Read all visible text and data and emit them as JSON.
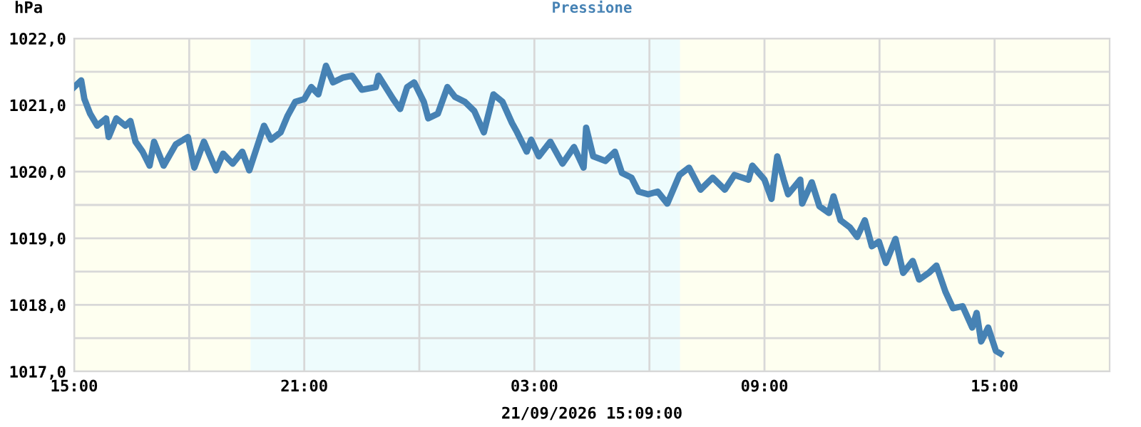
{
  "chart_data": {
    "type": "line",
    "title": "Pressione",
    "ylabel": "hPa",
    "xlabel": "21/09/2026 15:09:00",
    "x": [
      "2026-09-20T15:00",
      "2026-09-20T15:11",
      "2026-09-20T15:16",
      "2026-09-20T15:25",
      "2026-09-20T15:36",
      "2026-09-20T15:50",
      "2026-09-20T15:54",
      "2026-09-20T16:06",
      "2026-09-20T16:20",
      "2026-09-20T16:28",
      "2026-09-20T16:36",
      "2026-09-20T16:47",
      "2026-09-20T16:58",
      "2026-09-20T17:05",
      "2026-09-20T17:20",
      "2026-09-20T17:39",
      "2026-09-20T17:58",
      "2026-09-20T18:08",
      "2026-09-20T18:23",
      "2026-09-20T18:42",
      "2026-09-20T18:53",
      "2026-09-20T19:08",
      "2026-09-20T19:23",
      "2026-09-20T19:34",
      "2026-09-20T19:46",
      "2026-09-20T19:57",
      "2026-09-20T20:08",
      "2026-09-20T20:23",
      "2026-09-20T20:34",
      "2026-09-20T20:46",
      "2026-09-20T21:00",
      "2026-09-20T21:11",
      "2026-09-20T21:22",
      "2026-09-20T21:34",
      "2026-09-20T21:45",
      "2026-09-20T22:00",
      "2026-09-20T22:15",
      "2026-09-20T22:30",
      "2026-09-20T22:52",
      "2026-09-20T22:56",
      "2026-09-20T23:19",
      "2026-09-20T23:30",
      "2026-09-20T23:41",
      "2026-09-20T23:52",
      "2026-09-21T00:07",
      "2026-09-21T00:14",
      "2026-09-21T00:29",
      "2026-09-21T00:44",
      "2026-09-21T00:56",
      "2026-09-21T01:11",
      "2026-09-21T01:26",
      "2026-09-21T01:41",
      "2026-09-21T01:56",
      "2026-09-21T02:10",
      "2026-09-21T02:25",
      "2026-09-21T02:33",
      "2026-09-21T02:48",
      "2026-09-21T02:55",
      "2026-09-21T03:07",
      "2026-09-21T03:25",
      "2026-09-21T03:44",
      "2026-09-21T04:02",
      "2026-09-21T04:17",
      "2026-09-21T04:21",
      "2026-09-21T04:32",
      "2026-09-21T04:51",
      "2026-09-21T05:06",
      "2026-09-21T05:17",
      "2026-09-21T05:32",
      "2026-09-21T05:43",
      "2026-09-21T05:58",
      "2026-09-21T06:13",
      "2026-09-21T06:28",
      "2026-09-21T06:47",
      "2026-09-21T07:02",
      "2026-09-21T07:20",
      "2026-09-21T07:39",
      "2026-09-21T07:58",
      "2026-09-21T08:13",
      "2026-09-21T08:35",
      "2026-09-21T08:41",
      "2026-09-21T09:00",
      "2026-09-21T09:11",
      "2026-09-21T09:20",
      "2026-09-21T09:30",
      "2026-09-21T09:37",
      "2026-09-21T09:56",
      "2026-09-21T09:59",
      "2026-09-21T10:14",
      "2026-09-21T10:26",
      "2026-09-21T10:41",
      "2026-09-21T10:48",
      "2026-09-21T10:59",
      "2026-09-21T11:14",
      "2026-09-21T11:25",
      "2026-09-21T11:37",
      "2026-09-21T11:48",
      "2026-09-21T11:59",
      "2026-09-21T12:10",
      "2026-09-21T12:25",
      "2026-09-21T12:37",
      "2026-09-21T12:52",
      "2026-09-21T13:02",
      "2026-09-21T13:17",
      "2026-09-21T13:29",
      "2026-09-21T13:43",
      "2026-09-21T13:55",
      "2026-09-21T14:10",
      "2026-09-21T14:25",
      "2026-09-21T14:32",
      "2026-09-21T14:39",
      "2026-09-21T14:50",
      "2026-09-21T15:02",
      "2026-09-21T15:09"
    ],
    "series": [
      {
        "color": "#4682b4",
        "values": [
          1021.27,
          1021.37,
          1021.09,
          1020.87,
          1020.69,
          1020.8,
          1020.52,
          1020.8,
          1020.69,
          1020.76,
          1020.45,
          1020.3,
          1020.09,
          1020.45,
          1020.09,
          1020.41,
          1020.52,
          1020.06,
          1020.45,
          1020.02,
          1020.27,
          1020.12,
          1020.3,
          1020.02,
          1020.37,
          1020.69,
          1020.48,
          1020.59,
          1020.84,
          1021.05,
          1021.09,
          1021.27,
          1021.16,
          1021.59,
          1021.34,
          1021.41,
          1021.44,
          1021.23,
          1021.27,
          1021.44,
          1021.09,
          1020.94,
          1021.27,
          1021.34,
          1021.05,
          1020.8,
          1020.87,
          1021.27,
          1021.12,
          1021.05,
          1020.91,
          1020.59,
          1021.16,
          1021.05,
          1020.73,
          1020.59,
          1020.3,
          1020.48,
          1020.23,
          1020.45,
          1020.12,
          1020.37,
          1020.06,
          1020.66,
          1020.23,
          1020.16,
          1020.3,
          1019.98,
          1019.91,
          1019.7,
          1019.66,
          1019.7,
          1019.52,
          1019.95,
          1020.06,
          1019.73,
          1019.91,
          1019.73,
          1019.95,
          1019.88,
          1020.09,
          1019.88,
          1019.59,
          1020.23,
          1019.88,
          1019.66,
          1019.88,
          1019.52,
          1019.84,
          1019.48,
          1019.38,
          1019.63,
          1019.27,
          1019.16,
          1019.02,
          1019.27,
          1018.88,
          1018.95,
          1018.63,
          1018.99,
          1018.48,
          1018.66,
          1018.38,
          1018.48,
          1018.59,
          1018.2,
          1017.95,
          1017.98,
          1017.66,
          1017.88,
          1017.45,
          1017.66,
          1017.31,
          1017.27
        ]
      }
    ],
    "xlim": [
      "2026-09-20T15:00",
      "2026-09-21T18:00"
    ],
    "ylim": [
      1017,
      1022
    ],
    "xticks": [
      {
        "value": "2026-09-20T15:00",
        "label": "15:00"
      },
      {
        "value": "2026-09-20T18:00",
        "label": null
      },
      {
        "value": "2026-09-20T21:00",
        "label": "21:00"
      },
      {
        "value": "2026-09-21T00:00",
        "label": null
      },
      {
        "value": "2026-09-21T03:00",
        "label": "03:00"
      },
      {
        "value": "2026-09-21T06:00",
        "label": null
      },
      {
        "value": "2026-09-21T09:00",
        "label": "09:00"
      },
      {
        "value": "2026-09-21T12:00",
        "label": null
      },
      {
        "value": "2026-09-21T15:00",
        "label": "15:00"
      }
    ],
    "yticks": [
      {
        "value": 1017,
        "label": "1017,0"
      },
      {
        "value": 1017.5,
        "label": null
      },
      {
        "value": 1018,
        "label": "1018,0"
      },
      {
        "value": 1018.5,
        "label": null
      },
      {
        "value": 1019,
        "label": "1019,0"
      },
      {
        "value": 1019.5,
        "label": null
      },
      {
        "value": 1020,
        "label": "1020,0"
      },
      {
        "value": 1020.5,
        "label": null
      },
      {
        "value": 1021,
        "label": "1021,0"
      },
      {
        "value": 1021.5,
        "label": null
      },
      {
        "value": 1022,
        "label": "1022,0"
      }
    ],
    "bands": [
      {
        "axis": "x",
        "from": "2026-09-20T15:00",
        "to": "2026-09-20T19:36",
        "color": "#fefff0"
      },
      {
        "axis": "x",
        "from": "2026-09-20T19:36",
        "to": "2026-09-21T06:48",
        "color": "#eefcfd"
      },
      {
        "axis": "x",
        "from": "2026-09-21T06:48",
        "to": "2026-09-21T18:00",
        "color": "#fefff0"
      }
    ],
    "grid": true,
    "marker": "none",
    "line_style": "solid"
  }
}
